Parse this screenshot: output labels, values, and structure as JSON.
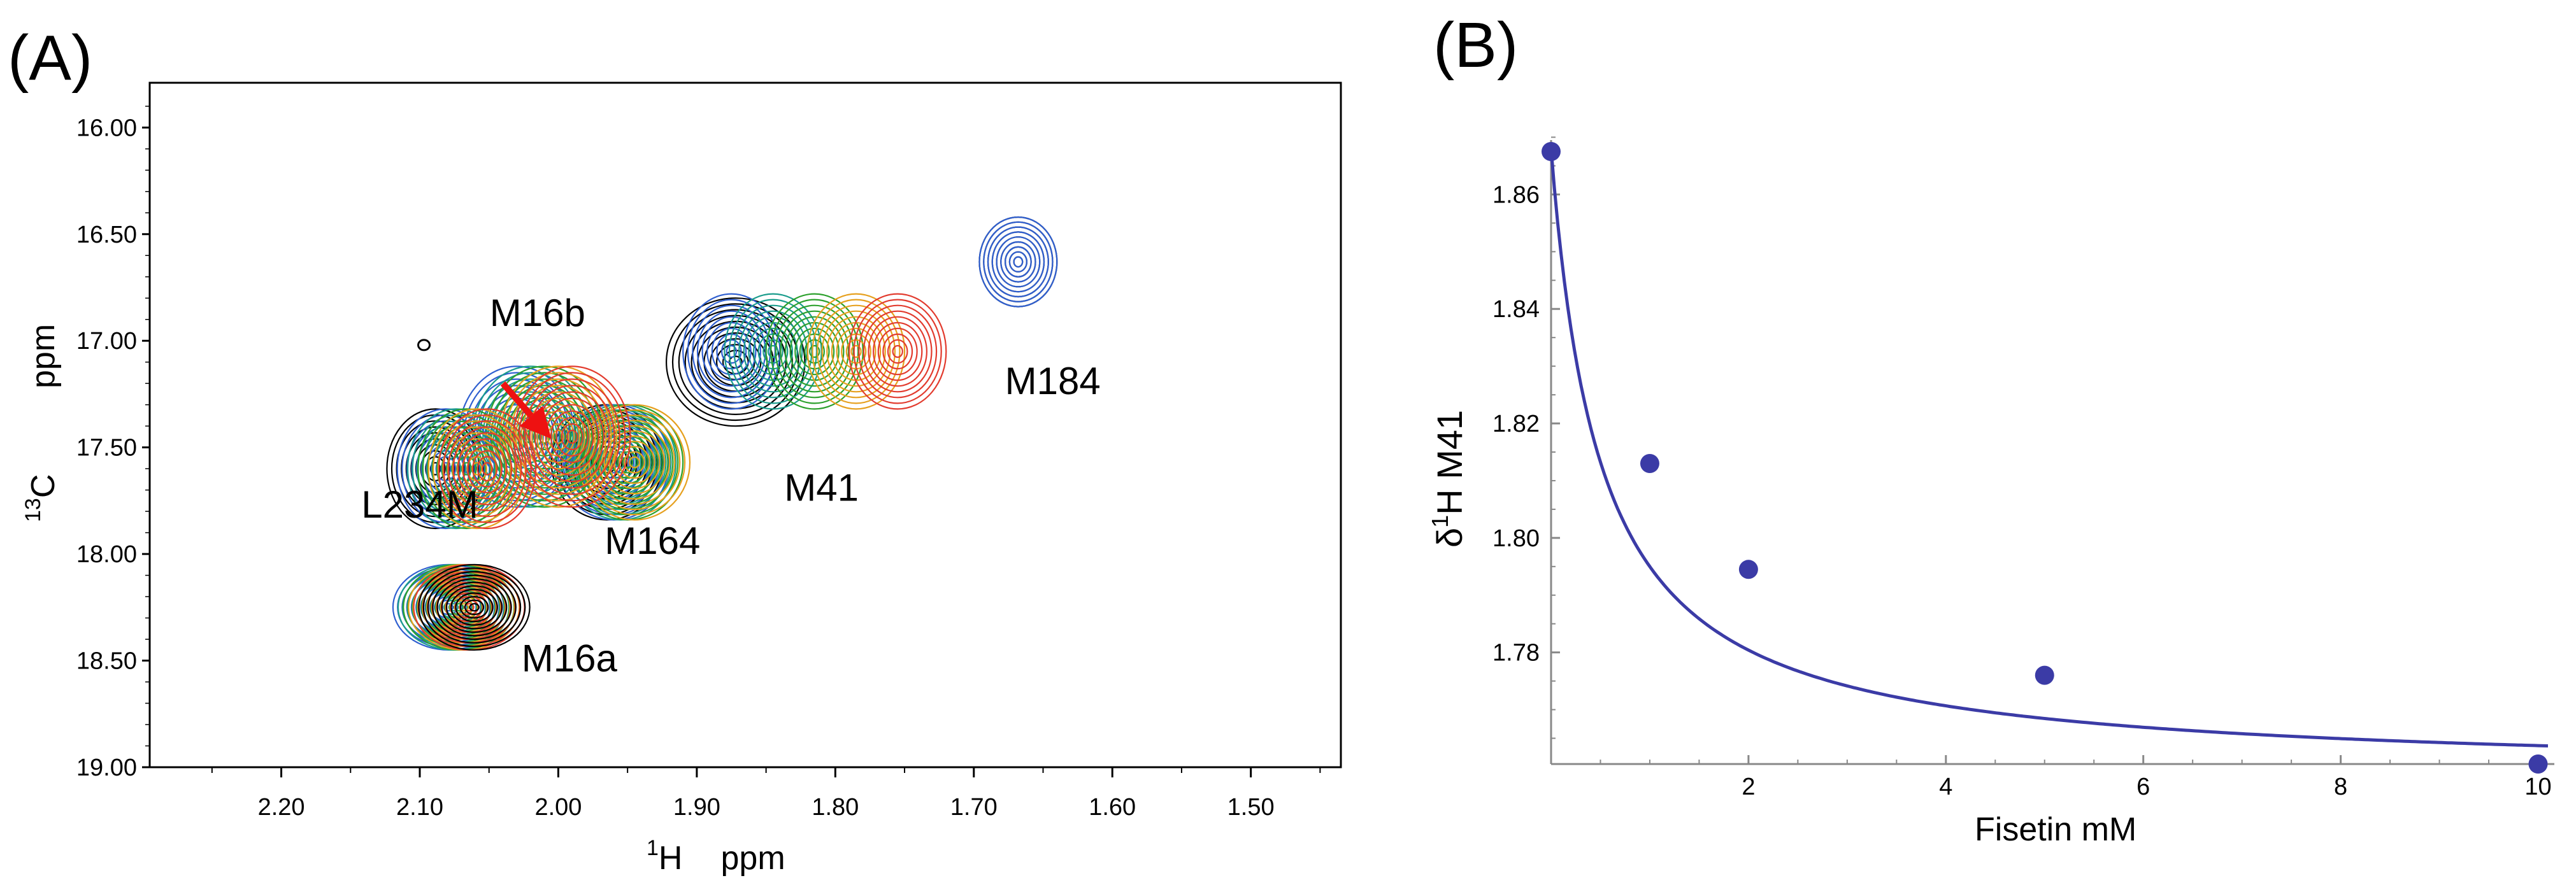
{
  "panels": {
    "a_label": "(A)",
    "b_label": "(B)"
  },
  "colors": {
    "axis": "#000000",
    "fit_curve": "#3b3ba6",
    "points": "#3b3ba6",
    "arrow": "#ee1111",
    "contour_levels": [
      "#000000",
      "#2f5fd0",
      "#1a9c8c",
      "#2ca02c",
      "#e6a01e",
      "#e23b2e"
    ]
  },
  "chart_data": [
    {
      "id": "A",
      "type": "contour",
      "title": "",
      "xlabel_sup": "1",
      "xlabel_main": "H",
      "xlabel_unit": "ppm",
      "ylabel_sup": "13",
      "ylabel_main": "C",
      "ylabel_unit": "ppm",
      "xlim": [
        2.295,
        1.435
      ],
      "ylim": [
        15.79,
        19.0
      ],
      "x_ticks": [
        "2.20",
        "2.10",
        "2.00",
        "1.90",
        "1.80",
        "1.70",
        "1.60",
        "1.50"
      ],
      "y_ticks": [
        "16.00",
        "16.50",
        "17.00",
        "17.50",
        "18.00",
        "18.50",
        "19.00"
      ],
      "peak_labels": [
        {
          "text": "M16b",
          "x": 2.015,
          "y": 16.93
        },
        {
          "text": "M184",
          "x": 1.643,
          "y": 17.25
        },
        {
          "text": "M41",
          "x": 1.81,
          "y": 17.75
        },
        {
          "text": "L234M",
          "x": 2.1,
          "y": 17.83
        },
        {
          "text": "M164",
          "x": 1.932,
          "y": 18.0
        },
        {
          "text": "M16a",
          "x": 1.992,
          "y": 18.55
        }
      ],
      "peaks": [
        {
          "name": "M184",
          "x": 1.668,
          "y": 16.63,
          "rx": 0.028,
          "ry": 0.21,
          "levels": 9,
          "colors": [
            "#000000",
            "#2f5fd0"
          ]
        },
        {
          "name": "M41-free",
          "x": 1.872,
          "y": 17.1,
          "rx": 0.05,
          "ry": 0.3,
          "levels": 11,
          "colors": [
            "#000000"
          ]
        },
        {
          "name": "M41-shift",
          "x": 1.815,
          "y": 17.05,
          "rx": 0.035,
          "ry": 0.27,
          "levels": 10,
          "colors": [
            "#2f5fd0",
            "#1a9c8c",
            "#2ca02c",
            "#e6a01e",
            "#e23b2e"
          ],
          "dx": 0.012
        },
        {
          "name": "M164",
          "x": 1.955,
          "y": 17.57,
          "rx": 0.04,
          "ry": 0.27,
          "levels": 11,
          "colors": [
            "#000000",
            "#2f5fd0",
            "#1a9c8c",
            "#2ca02c",
            "#e6a01e"
          ],
          "dx": 0.002
        },
        {
          "name": "M16b",
          "x": 2.01,
          "y": 17.45,
          "rx": 0.042,
          "ry": 0.33,
          "levels": 11,
          "colors": [
            "#2f5fd0",
            "#1a9c8c",
            "#2ca02c",
            "#e6a01e",
            "#e23b2e"
          ],
          "dx": 0.004
        },
        {
          "name": "L234M",
          "x": 2.07,
          "y": 17.6,
          "rx": 0.035,
          "ry": 0.28,
          "levels": 10,
          "colors": [
            "#000000",
            "#2f5fd0",
            "#1a9c8c",
            "#2ca02c",
            "#e6a01e",
            "#e23b2e"
          ],
          "dx": 0.003
        },
        {
          "name": "M16a",
          "x": 2.07,
          "y": 18.25,
          "rx": 0.04,
          "ry": 0.2,
          "levels": 12,
          "colors": [
            "#2f5fd0",
            "#1a9c8c",
            "#2ca02c",
            "#e6a01e",
            "#e23b2e",
            "#000000"
          ],
          "dx": 0.0015
        }
      ],
      "arrow": {
        "from": [
          2.04,
          17.2
        ],
        "to": [
          2.005,
          17.46
        ]
      },
      "marker": {
        "x": 2.097,
        "y": 17.02
      }
    },
    {
      "id": "B",
      "type": "scatter",
      "title": "",
      "xlabel": "Fisetin   mM",
      "ylabel_prefix": "δ",
      "ylabel_sup": "1",
      "ylabel_main": "H  M41",
      "xlim": [
        0,
        10.1
      ],
      "ylim": [
        1.7605,
        1.8695
      ],
      "x_ticks": [
        "2",
        "4",
        "6",
        "8",
        "10"
      ],
      "y_ticks": [
        "1.78",
        "1.80",
        "1.82",
        "1.84",
        "1.86"
      ],
      "x": [
        0,
        1,
        2,
        5,
        10
      ],
      "y": [
        1.8675,
        1.813,
        1.7945,
        1.776,
        1.7605
      ],
      "fit": {
        "a": 1.7585,
        "b": 0.1095,
        "c": 0.5
      }
    }
  ]
}
